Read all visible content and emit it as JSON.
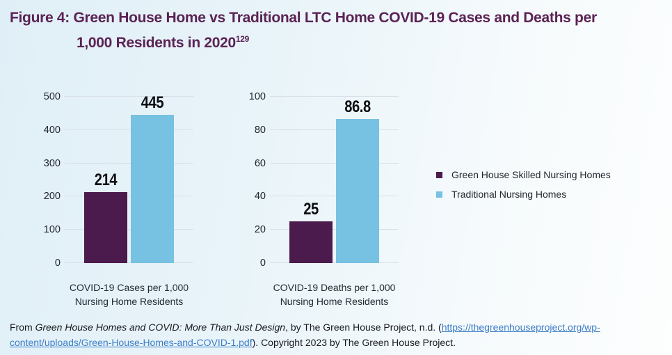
{
  "title": {
    "line1": "Figure 4: Green House Home vs Traditional LTC Home COVID-19 Cases and Deaths per",
    "line2": "1,000 Residents in 2020",
    "superscript": "129"
  },
  "colors": {
    "green_house": "#4c1b4d",
    "traditional": "#77c1e2",
    "title_text": "#5b2355",
    "gridline": "#d9dfe6",
    "link": "#3d7ec7"
  },
  "chart_data": [
    {
      "type": "bar",
      "title": "COVID-19 Cases per 1,000 Nursing Home Residents",
      "xlabel_line1": "COVID-19 Cases per 1,000",
      "xlabel_line2": "Nursing Home Residents",
      "ylim": [
        0,
        500
      ],
      "yticks": [
        0,
        100,
        200,
        300,
        400,
        500
      ],
      "grid": true,
      "series": [
        {
          "key": "green-house",
          "name": "Green House Skilled Nursing Homes",
          "value": 214,
          "label": "214",
          "color": "#4c1b4d"
        },
        {
          "key": "traditional",
          "name": "Traditional Nursing Homes",
          "value": 445,
          "label": "445",
          "color": "#77c1e2"
        }
      ]
    },
    {
      "type": "bar",
      "title": "COVID-19 Deaths per 1,000 Nursing Home Residents",
      "xlabel_line1": "COVID-19 Deaths per 1,000",
      "xlabel_line2": "Nursing Home Residents",
      "ylim": [
        0,
        100
      ],
      "yticks": [
        0,
        20,
        40,
        60,
        80,
        100
      ],
      "grid": true,
      "series": [
        {
          "key": "green-house",
          "name": "Green House Skilled Nursing Homes",
          "value": 25,
          "label": "25",
          "color": "#4c1b4d"
        },
        {
          "key": "traditional",
          "name": "Traditional Nursing Homes",
          "value": 86.8,
          "label": "86.8",
          "color": "#77c1e2"
        }
      ]
    }
  ],
  "legend": {
    "position": "right",
    "items": [
      {
        "label": "Green House Skilled Nursing Homes",
        "color": "#4c1b4d"
      },
      {
        "label": "Traditional Nursing Homes",
        "color": "#77c1e2"
      }
    ]
  },
  "footer": {
    "prefix": "From ",
    "work_title": "Green House Homes and COVID: More Than Just Design",
    "middle": ", by The Green House Project, n.d. (",
    "link_href": "https://thegreenhouseproject.org/wp-content/uploads/Green-House-Homes-and-COVID-1.pdf",
    "link_line1": "https://thegreenhouseproject.org/wp-",
    "link_line2": "content/uploads/Green-House-Homes-and-COVID-1.pdf",
    "suffix": "). Copyright 2023 by The Green House Project."
  }
}
